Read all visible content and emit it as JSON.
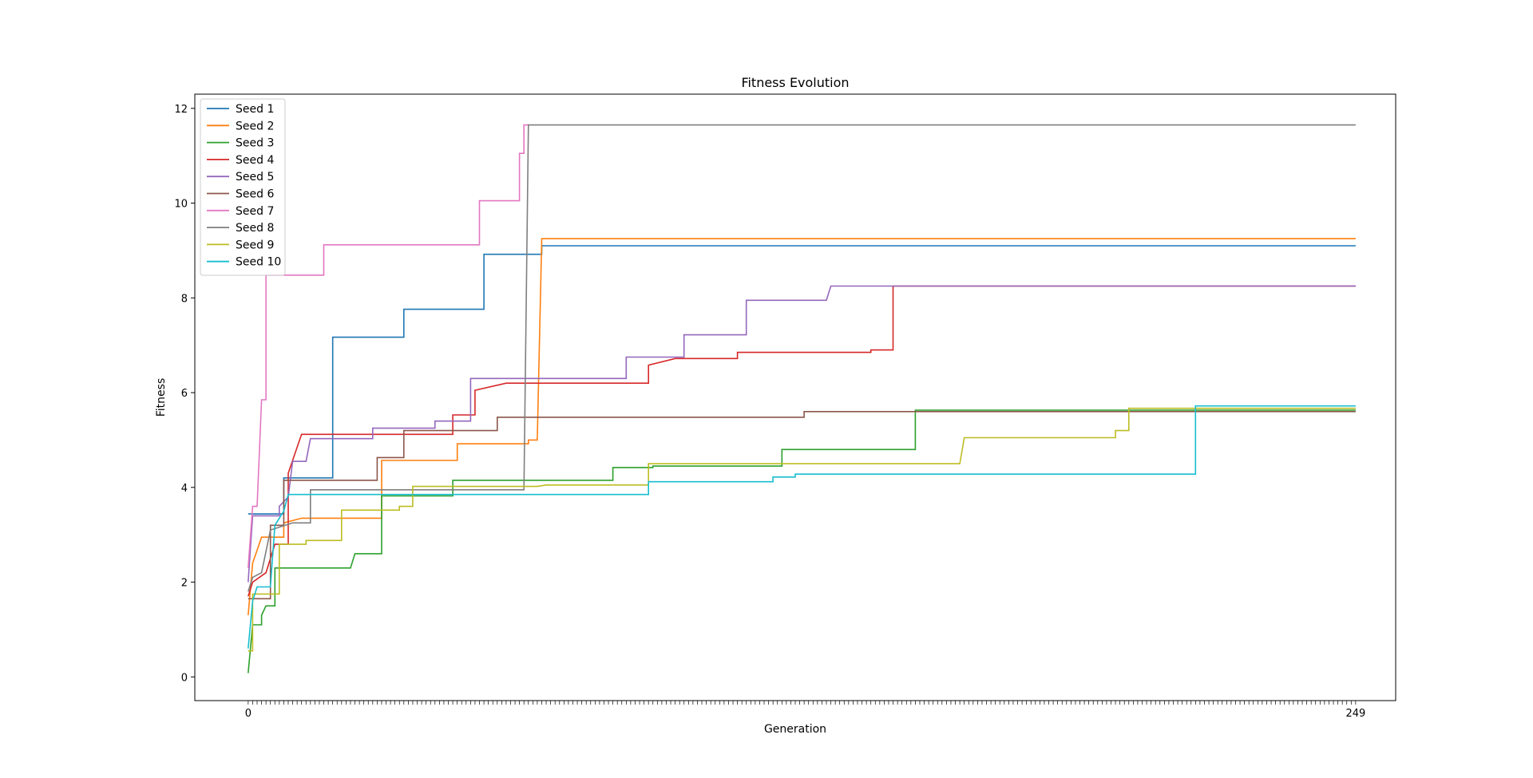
{
  "chart_data": {
    "type": "line",
    "title": "Fitness Evolution",
    "xlabel": "Generation",
    "ylabel": "Fitness",
    "xlim": [
      -12,
      258
    ],
    "ylim": [
      -0.5,
      12.3
    ],
    "y_ticks": [
      0,
      2,
      4,
      6,
      8,
      10,
      12
    ],
    "x_ticks": [
      0,
      249
    ],
    "x_tick_labels": [
      "0",
      "249"
    ],
    "grid": false,
    "legend_position": "top-left",
    "series": [
      {
        "name": "Seed 1",
        "color": "#1f77b4",
        "points": [
          [
            0,
            3.44
          ],
          [
            8,
            3.44
          ],
          [
            8,
            4.2
          ],
          [
            19,
            4.2
          ],
          [
            19,
            7.17
          ],
          [
            35,
            7.17
          ],
          [
            35,
            7.76
          ],
          [
            53,
            7.76
          ],
          [
            53,
            8.92
          ],
          [
            66,
            8.92
          ],
          [
            66,
            9.1
          ],
          [
            249,
            9.1
          ]
        ]
      },
      {
        "name": "Seed 2",
        "color": "#ff7f0e",
        "points": [
          [
            0,
            1.3
          ],
          [
            1,
            2.4
          ],
          [
            3,
            2.95
          ],
          [
            8,
            2.95
          ],
          [
            8,
            3.25
          ],
          [
            12,
            3.35
          ],
          [
            30,
            3.35
          ],
          [
            30,
            4.57
          ],
          [
            47,
            4.57
          ],
          [
            47,
            4.92
          ],
          [
            63,
            4.92
          ],
          [
            63,
            5.0
          ],
          [
            65,
            5.0
          ],
          [
            66,
            9.25
          ],
          [
            249,
            9.25
          ]
        ]
      },
      {
        "name": "Seed 3",
        "color": "#2ca02c",
        "points": [
          [
            0,
            0.08
          ],
          [
            1,
            1.1
          ],
          [
            3,
            1.1
          ],
          [
            3,
            1.3
          ],
          [
            4,
            1.5
          ],
          [
            6,
            1.5
          ],
          [
            6,
            2.3
          ],
          [
            23,
            2.3
          ],
          [
            24,
            2.6
          ],
          [
            30,
            2.6
          ],
          [
            30,
            3.82
          ],
          [
            46,
            3.82
          ],
          [
            46,
            4.15
          ],
          [
            82,
            4.15
          ],
          [
            82,
            4.42
          ],
          [
            91,
            4.42
          ],
          [
            91,
            4.45
          ],
          [
            120,
            4.45
          ],
          [
            120,
            4.8
          ],
          [
            150,
            4.8
          ],
          [
            150,
            5.63
          ],
          [
            249,
            5.63
          ]
        ]
      },
      {
        "name": "Seed 4",
        "color": "#d62728",
        "points": [
          [
            0,
            1.7
          ],
          [
            1,
            2.0
          ],
          [
            4,
            2.2
          ],
          [
            6,
            2.8
          ],
          [
            9,
            2.8
          ],
          [
            9,
            4.3
          ],
          [
            12,
            5.12
          ],
          [
            46,
            5.12
          ],
          [
            46,
            5.53
          ],
          [
            51,
            5.53
          ],
          [
            51,
            6.05
          ],
          [
            58,
            6.2
          ],
          [
            90,
            6.2
          ],
          [
            90,
            6.58
          ],
          [
            96,
            6.72
          ],
          [
            110,
            6.72
          ],
          [
            110,
            6.85
          ],
          [
            140,
            6.85
          ],
          [
            140,
            6.9
          ],
          [
            145,
            6.9
          ],
          [
            145,
            8.25
          ],
          [
            249,
            8.25
          ]
        ]
      },
      {
        "name": "Seed 5",
        "color": "#9467bd",
        "points": [
          [
            0,
            2.0
          ],
          [
            1,
            3.4
          ],
          [
            7,
            3.4
          ],
          [
            7,
            3.6
          ],
          [
            9,
            3.8
          ],
          [
            10,
            4.55
          ],
          [
            13,
            4.55
          ],
          [
            14,
            5.03
          ],
          [
            28,
            5.03
          ],
          [
            28,
            5.25
          ],
          [
            42,
            5.25
          ],
          [
            42,
            5.4
          ],
          [
            50,
            5.4
          ],
          [
            50,
            6.3
          ],
          [
            85,
            6.3
          ],
          [
            85,
            6.75
          ],
          [
            98,
            6.75
          ],
          [
            98,
            7.22
          ],
          [
            112,
            7.22
          ],
          [
            112,
            7.95
          ],
          [
            130,
            7.95
          ],
          [
            131,
            8.25
          ],
          [
            249,
            8.25
          ]
        ]
      },
      {
        "name": "Seed 6",
        "color": "#8c564b",
        "points": [
          [
            0,
            1.65
          ],
          [
            5,
            1.65
          ],
          [
            5,
            3.2
          ],
          [
            8,
            3.2
          ],
          [
            8,
            4.15
          ],
          [
            29,
            4.15
          ],
          [
            29,
            4.63
          ],
          [
            35,
            4.63
          ],
          [
            35,
            5.2
          ],
          [
            56,
            5.2
          ],
          [
            56,
            5.48
          ],
          [
            125,
            5.48
          ],
          [
            125,
            5.6
          ],
          [
            249,
            5.6
          ]
        ]
      },
      {
        "name": "Seed 7",
        "color": "#e377c2",
        "points": [
          [
            0,
            2.3
          ],
          [
            1,
            3.6
          ],
          [
            2,
            3.6
          ],
          [
            3,
            5.85
          ],
          [
            4,
            5.85
          ],
          [
            4,
            8.48
          ],
          [
            17,
            8.48
          ],
          [
            17,
            9.12
          ],
          [
            52,
            9.12
          ],
          [
            52,
            10.05
          ],
          [
            61,
            10.05
          ],
          [
            61,
            11.05
          ],
          [
            62,
            11.05
          ],
          [
            62,
            11.65
          ],
          [
            63,
            11.65
          ]
        ]
      },
      {
        "name": "Seed 8",
        "color": "#7f7f7f",
        "points": [
          [
            0,
            1.8
          ],
          [
            1,
            2.1
          ],
          [
            3,
            2.2
          ],
          [
            5,
            3.1
          ],
          [
            10,
            3.25
          ],
          [
            14,
            3.25
          ],
          [
            14,
            3.95
          ],
          [
            62,
            3.95
          ],
          [
            63,
            11.65
          ],
          [
            249,
            11.65
          ]
        ]
      },
      {
        "name": "Seed 9",
        "color": "#bcbd22",
        "points": [
          [
            0,
            0.55
          ],
          [
            1,
            0.55
          ],
          [
            1,
            1.75
          ],
          [
            7,
            1.75
          ],
          [
            7,
            2.8
          ],
          [
            13,
            2.8
          ],
          [
            13,
            2.88
          ],
          [
            21,
            2.88
          ],
          [
            21,
            3.52
          ],
          [
            34,
            3.52
          ],
          [
            34,
            3.6
          ],
          [
            37,
            3.6
          ],
          [
            37,
            4.02
          ],
          [
            65,
            4.02
          ],
          [
            67,
            4.05
          ],
          [
            90,
            4.05
          ],
          [
            90,
            4.5
          ],
          [
            160,
            4.5
          ],
          [
            161,
            5.05
          ],
          [
            195,
            5.05
          ],
          [
            195,
            5.2
          ],
          [
            198,
            5.2
          ],
          [
            198,
            5.67
          ],
          [
            249,
            5.67
          ]
        ]
      },
      {
        "name": "Seed 10",
        "color": "#17becf",
        "points": [
          [
            0,
            0.6
          ],
          [
            1,
            1.6
          ],
          [
            2,
            1.9
          ],
          [
            5,
            1.9
          ],
          [
            6,
            3.2
          ],
          [
            8,
            3.5
          ],
          [
            9,
            3.85
          ],
          [
            90,
            3.85
          ],
          [
            90,
            4.12
          ],
          [
            118,
            4.12
          ],
          [
            118,
            4.22
          ],
          [
            123,
            4.22
          ],
          [
            123,
            4.28
          ],
          [
            213,
            4.28
          ],
          [
            213,
            5.72
          ],
          [
            249,
            5.72
          ]
        ]
      }
    ]
  }
}
